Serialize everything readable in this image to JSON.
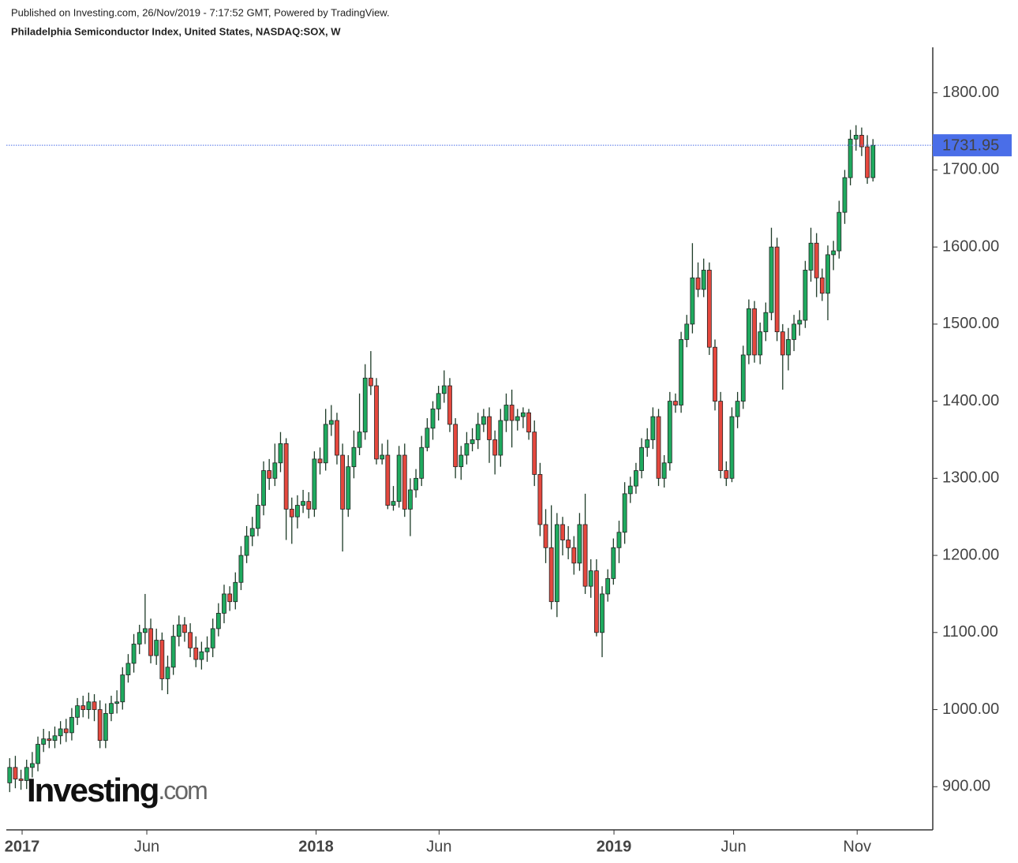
{
  "header": {
    "published": "Published on Investing.com, 26/Nov/2019 - 7:17:52 GMT, Powered by TradingView.",
    "symbol": "Philadelphia Semiconductor Index, United States, NASDAQ:SOX, W"
  },
  "watermark": {
    "brand": "Investing",
    "suffix": ".com"
  },
  "chart_data": {
    "type": "candlestick",
    "up_color": "#1faa5f",
    "down_color": "#e5483e",
    "last_price": 1731.95,
    "last_price_label": "1731.95",
    "last_price_color": "#4a6ee8",
    "xlim": [
      -0.6,
      163.6
    ],
    "xticks": [
      {
        "value": 2.2,
        "label": "2017"
      },
      {
        "value": 24.3,
        "label": "Jun"
      },
      {
        "value": 54.3,
        "label": "2018"
      },
      {
        "value": 76.1,
        "label": "Jun"
      },
      {
        "value": 107.1,
        "label": "2019"
      },
      {
        "value": 128.3,
        "label": "Jun"
      },
      {
        "value": 150.2,
        "label": "Nov"
      }
    ],
    "ylim": [
      844,
      1859
    ],
    "yticks": [
      {
        "value": 900,
        "label": "900.00"
      },
      {
        "value": 1000,
        "label": "1000.00"
      },
      {
        "value": 1100,
        "label": "1100.00"
      },
      {
        "value": 1200,
        "label": "1200.00"
      },
      {
        "value": 1300,
        "label": "1300.00"
      },
      {
        "value": 1400,
        "label": "1400.00"
      },
      {
        "value": 1500,
        "label": "1500.00"
      },
      {
        "value": 1600,
        "label": "1600.00"
      },
      {
        "value": 1700,
        "label": "1700.00"
      },
      {
        "value": 1800,
        "label": "1800.00"
      }
    ],
    "open": [
      905,
      925,
      910,
      908,
      925,
      930,
      955,
      962,
      960,
      966,
      975,
      970,
      990,
      1005,
      1000,
      1010,
      1000,
      960,
      995,
      1008,
      1010,
      1045,
      1060,
      1085,
      1100,
      1105,
      1070,
      1090,
      1040,
      1055,
      1095,
      1110,
      1100,
      1080,
      1065,
      1075,
      1080,
      1105,
      1125,
      1150,
      1140,
      1165,
      1200,
      1225,
      1235,
      1265,
      1310,
      1300,
      1320,
      1345,
      1260,
      1250,
      1265,
      1270,
      1260,
      1325,
      1320,
      1370,
      1375,
      1330,
      1260,
      1315,
      1340,
      1360,
      1430,
      1420,
      1325,
      1330,
      1265,
      1270,
      1330,
      1260,
      1285,
      1300,
      1340,
      1365,
      1390,
      1410,
      1420,
      1370,
      1315,
      1330,
      1345,
      1350,
      1370,
      1380,
      1350,
      1330,
      1375,
      1395,
      1375,
      1380,
      1385,
      1360,
      1305,
      1240,
      1210,
      1140,
      1240,
      1220,
      1210,
      1190,
      1240,
      1160,
      1180,
      1100,
      1150,
      1170,
      1210,
      1230,
      1280,
      1290,
      1310,
      1340,
      1350,
      1380,
      1300,
      1320,
      1400,
      1395,
      1480,
      1500,
      1560,
      1545,
      1570,
      1470,
      1400,
      1310,
      1300,
      1380,
      1400,
      1460,
      1520,
      1460,
      1490,
      1515,
      1600,
      1490,
      1460,
      1480,
      1500,
      1505,
      1570,
      1605,
      1560,
      1540,
      1590,
      1595,
      1645,
      1690,
      1740,
      1745,
      1730,
      1690
    ],
    "high": [
      937,
      940,
      922,
      935,
      945,
      965,
      975,
      972,
      978,
      985,
      988,
      1002,
      1015,
      1018,
      1022,
      1020,
      1012,
      1008,
      1018,
      1025,
      1055,
      1072,
      1098,
      1110,
      1150,
      1118,
      1105,
      1100,
      1070,
      1110,
      1122,
      1120,
      1112,
      1095,
      1088,
      1095,
      1118,
      1138,
      1162,
      1160,
      1178,
      1212,
      1238,
      1250,
      1280,
      1322,
      1325,
      1345,
      1360,
      1352,
      1275,
      1278,
      1285,
      1282,
      1335,
      1340,
      1390,
      1395,
      1385,
      1345,
      1330,
      1362,
      1410,
      1448,
      1465,
      1430,
      1345,
      1350,
      1290,
      1342,
      1345,
      1300,
      1312,
      1355,
      1378,
      1400,
      1420,
      1440,
      1430,
      1378,
      1342,
      1360,
      1365,
      1385,
      1390,
      1392,
      1362,
      1390,
      1410,
      1415,
      1390,
      1392,
      1390,
      1375,
      1320,
      1260,
      1265,
      1255,
      1250,
      1238,
      1225,
      1255,
      1280,
      1195,
      1195,
      1160,
      1182,
      1222,
      1245,
      1295,
      1302,
      1320,
      1352,
      1365,
      1392,
      1390,
      1330,
      1412,
      1410,
      1490,
      1512,
      1605,
      1580,
      1585,
      1580,
      1480,
      1412,
      1322,
      1392,
      1412,
      1472,
      1532,
      1530,
      1502,
      1528,
      1625,
      1612,
      1500,
      1495,
      1512,
      1518,
      1582,
      1625,
      1618,
      1572,
      1602,
      1608,
      1660,
      1700,
      1752,
      1758,
      1755,
      1745,
      1740
    ],
    "low": [
      893,
      898,
      896,
      897,
      912,
      920,
      945,
      950,
      950,
      955,
      958,
      960,
      980,
      990,
      988,
      985,
      950,
      950,
      985,
      995,
      1000,
      1035,
      1048,
      1072,
      1085,
      1060,
      1058,
      1025,
      1020,
      1045,
      1082,
      1088,
      1068,
      1055,
      1052,
      1062,
      1068,
      1095,
      1112,
      1128,
      1130,
      1155,
      1190,
      1212,
      1225,
      1252,
      1285,
      1290,
      1308,
      1220,
      1215,
      1235,
      1255,
      1248,
      1250,
      1305,
      1310,
      1355,
      1318,
      1205,
      1250,
      1300,
      1330,
      1350,
      1408,
      1318,
      1318,
      1260,
      1258,
      1262,
      1250,
      1225,
      1275,
      1290,
      1335,
      1350,
      1375,
      1398,
      1360,
      1300,
      1298,
      1318,
      1335,
      1338,
      1360,
      1320,
      1305,
      1315,
      1360,
      1340,
      1362,
      1365,
      1350,
      1290,
      1225,
      1190,
      1130,
      1120,
      1200,
      1195,
      1175,
      1180,
      1150,
      1145,
      1095,
      1068,
      1140,
      1162,
      1190,
      1215,
      1268,
      1280,
      1300,
      1328,
      1338,
      1290,
      1288,
      1310,
      1385,
      1385,
      1470,
      1488,
      1535,
      1535,
      1460,
      1388,
      1300,
      1290,
      1295,
      1365,
      1390,
      1448,
      1450,
      1448,
      1478,
      1505,
      1478,
      1415,
      1440,
      1465,
      1485,
      1495,
      1555,
      1535,
      1530,
      1505,
      1570,
      1585,
      1630,
      1680,
      1725,
      1718,
      1682,
      1685
    ],
    "close": [
      925,
      910,
      908,
      925,
      930,
      955,
      962,
      960,
      966,
      975,
      970,
      990,
      1005,
      1000,
      1010,
      1000,
      960,
      995,
      1008,
      1010,
      1045,
      1060,
      1085,
      1100,
      1105,
      1070,
      1090,
      1040,
      1055,
      1095,
      1110,
      1100,
      1080,
      1065,
      1075,
      1080,
      1105,
      1125,
      1150,
      1140,
      1165,
      1200,
      1225,
      1235,
      1265,
      1310,
      1300,
      1320,
      1345,
      1260,
      1250,
      1265,
      1270,
      1260,
      1325,
      1320,
      1370,
      1375,
      1330,
      1260,
      1315,
      1340,
      1360,
      1430,
      1420,
      1325,
      1330,
      1265,
      1270,
      1330,
      1260,
      1285,
      1300,
      1340,
      1365,
      1390,
      1410,
      1420,
      1370,
      1315,
      1330,
      1345,
      1350,
      1370,
      1380,
      1350,
      1330,
      1375,
      1395,
      1375,
      1380,
      1385,
      1360,
      1305,
      1240,
      1210,
      1140,
      1240,
      1220,
      1210,
      1190,
      1240,
      1160,
      1180,
      1100,
      1150,
      1170,
      1210,
      1230,
      1280,
      1290,
      1310,
      1340,
      1350,
      1380,
      1300,
      1320,
      1400,
      1395,
      1480,
      1500,
      1560,
      1545,
      1570,
      1470,
      1400,
      1310,
      1300,
      1380,
      1400,
      1460,
      1520,
      1460,
      1490,
      1515,
      1600,
      1490,
      1460,
      1480,
      1500,
      1505,
      1570,
      1605,
      1560,
      1540,
      1590,
      1595,
      1645,
      1690,
      1740,
      1745,
      1730,
      1690,
      1731.95
    ]
  }
}
